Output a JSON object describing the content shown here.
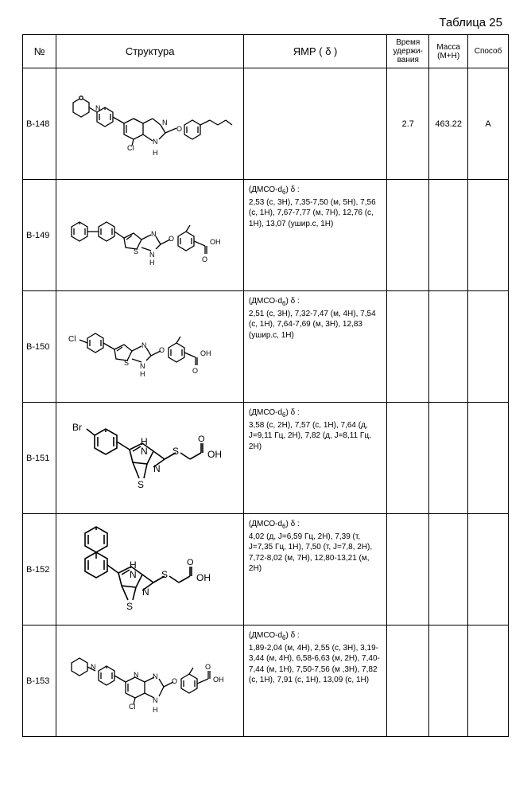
{
  "title": "Таблица 25",
  "headers": {
    "num": "№",
    "struct": "Структура",
    "nmr": "ЯМР ( δ )",
    "rt": "Время удержи-вания",
    "mass": "Масса (M+H)",
    "meth": "Способ"
  },
  "rows": [
    {
      "id": "B-148",
      "nmr": "",
      "rt": "2.7",
      "mass": "463.22",
      "meth": "A"
    },
    {
      "id": "B-149",
      "nmr": "(ДМСО-d₆) δ :\n2,53 (с, 3H), 7,35-7,50 (м, 5H), 7,56 (с, 1H), 7,67-7,77 (м, 7H), 12,76 (с, 1H), 13,07 (ушир.с, 1H)",
      "rt": "",
      "mass": "",
      "meth": ""
    },
    {
      "id": "B-150",
      "nmr": "(ДМСО-d₆) δ :\n2,51 (с, 3H), 7,32-7,47 (м, 4H), 7,54 (с, 1H), 7,64-7,69 (м, 3H), 12,83 (ушир.с, 1H)",
      "rt": "",
      "mass": "",
      "meth": ""
    },
    {
      "id": "B-151",
      "nmr": "(ДМСО-d₆) δ :\n3,58 (с, 2H), 7,57 (с, 1H), 7,64 (д, J=9,11 Гц, 2H), 7,82 (д, J=8,11 Гц, 2H)",
      "rt": "",
      "mass": "",
      "meth": ""
    },
    {
      "id": "B-152",
      "nmr": "(ДМСО-d₆) δ :\n4,02 (д, J=6,59 Гц, 2H), 7,39 (т, J=7,35 Гц, 1H), 7,50 (т, J=7,8, 2H), 7,72-8,02 (м, 7H), 12,80-13,21 (м, 2H)",
      "rt": "",
      "mass": "",
      "meth": ""
    },
    {
      "id": "B-153",
      "nmr": "(ДМСО-d₆) δ :\n1,89-2,04 (м, 4H), 2,55 (с, 3H), 3,19-3,44 (м, 4H), 6,58-6,63 (м, 2H), 7,40-7,44 (м, 1H), 7,50-7,56 (м ,3H), 7,82 (с, 1H), 7,91 (с, 1H), 13,09 (с, 1H)",
      "rt": "",
      "mass": "",
      "meth": ""
    }
  ],
  "mol_svgs": {
    "B-148": "<svg width='210' height='110' viewBox='0 0 210 110'><g stroke='#000' stroke-width='1.3' fill='none'><polygon points='8,30 18,24 28,30 28,42 18,48 8,42'/><circle cx='18' cy='24' r='2.2' fill='#fff'/><line x1='28' y1='36' x2='38' y2='42'/><polygon points='38,42 48,36 58,42 58,54 48,60 38,54'/><line x1='41' y1='44' x2='41' y2='52'/><line x1='55' y1='44' x2='55' y2='52'/><line x1='48' y1='36' x2='48' y2='39'/><line x1='58' y1='48' x2='72' y2='56'/><polygon points='72,56 84,50 96,56 96,70 84,76 72,70'/><line x1='75' y1='58' x2='75' y2='68'/><line x1='84' y1='50' x2='90' y2='53'/><line x1='96' y1='56' x2='108' y2='50'/><line x1='108' y1='50' x2='118' y2='58'/><line x1='96' y1='70' x2='108' y2='78'/><text x='108' y='82' font-size='9' fill='#000' stroke='none'>N</text><text x='108' y='96' font-size='9' fill='#000' stroke='none'>H</text><line x1='116' y1='76' x2='124' y2='68'/><line x1='118' y1='58' x2='124' y2='68'/><text x='120' y='58' font-size='9' fill='#000' stroke='none'>N</text><line x1='124' y1='68' x2='138' y2='62'/><text x='138' y='66' font-size='9' fill='#000' stroke='none'>O</text><polygon points='148,58 158,52 168,58 168,70 158,76 148,70'/><line x1='151' y1='60' x2='151' y2='68'/><line x1='165' y1='60' x2='165' y2='68'/><line x1='168' y1='58' x2='180' y2='52'/><line x1='180' y1='52' x2='190' y2='58'/><line x1='190' y1='58' x2='200' y2='52'/><line x1='200' y1='52' x2='208' y2='58'/><text x='76' y='90' font-size='9' fill='#000' stroke='none'>Cl</text><line x1='84' y1='76' x2='82' y2='84'/><text x='36' y='40' font-size='9' fill='#000' stroke='none'>N</text></g></svg>",
    "B-149": "<svg width='210' height='90' viewBox='0 0 210 90'><g stroke='#000' stroke-width='1.3' fill='none'><polygon points='6,36 16,30 26,36 26,48 16,54 6,48'/><line x1='9' y1='38' x2='9' y2='46'/><line x1='23' y1='38' x2='23' y2='46'/><line x1='16' y1='30' x2='16' y2='33'/><line x1='26' y1='42' x2='40' y2='42'/><polygon points='40,36 50,30 60,36 60,48 50,54 40,48'/><line x1='43' y1='38' x2='43' y2='46'/><line x1='57' y1='38' x2='57' y2='46'/><line x1='60' y1='42' x2='72' y2='50'/><polygon points='72,50 84,44 94,52 88,64 74,62'/><line x1='75' y1='52' x2='82' y2='47'/><text x='84' y='70' font-size='9' fill='#000' stroke='none'>S</text><line x1='94' y1='52' x2='106' y2='46'/><text x='106' y='48' font-size='9' fill='#000' stroke='none'>N</text><line x1='94' y1='62' x2='106' y2='66'/><text x='104' y='74' font-size='9' fill='#000' stroke='none'>N</text><text x='104' y='84' font-size='9' fill='#000' stroke='none'>H</text><line x1='112' y1='48' x2='118' y2='58'/><line x1='112' y1='64' x2='118' y2='58'/><line x1='118' y1='58' x2='130' y2='52'/><text x='128' y='54' font-size='9' fill='#000' stroke='none'>O</text><polygon points='140,48 150,42 160,48 160,60 150,66 140,60'/><line x1='143' y1='50' x2='143' y2='58'/><line x1='157' y1='50' x2='157' y2='58'/><line x1='150' y1='42' x2='155' y2='34'/><line x1='160' y1='54' x2='174' y2='60'/><line x1='174' y1='60' x2='174' y2='70'/><line x1='176' y1='60' x2='176' y2='70'/><text x='170' y='80' font-size='9' fill='#000' stroke='none'>O</text><text x='180' y='58' font-size='9' fill='#000' stroke='none'>OH</text></g></svg>",
    "B-150": "<svg width='210' height='90' viewBox='0 0 210 90'><g stroke='#000' stroke-width='1.3' fill='none'><text x='2' y='40' font-size='10' fill='#000' stroke='none'>Cl</text><line x1='16' y1='38' x2='26' y2='42'/><polygon points='26,36 36,30 46,36 46,48 36,54 26,48'/><line x1='29' y1='38' x2='29' y2='46'/><line x1='43' y1='38' x2='43' y2='46'/><line x1='46' y1='42' x2='60' y2='50'/><polygon points='60,50 72,44 82,52 76,64 62,62'/><line x1='63' y1='52' x2='70' y2='47'/><text x='72' y='70' font-size='9' fill='#000' stroke='none'>S</text><line x1='82' y1='52' x2='94' y2='46'/><text x='94' y='48' font-size='9' fill='#000' stroke='none'>N</text><line x1='82' y1='62' x2='94' y2='66'/><text x='92' y='74' font-size='9' fill='#000' stroke='none'>N</text><text x='92' y='84' font-size='9' fill='#000' stroke='none'>H</text><line x1='100' y1='48' x2='106' y2='58'/><line x1='100' y1='64' x2='106' y2='58'/><line x1='106' y1='58' x2='118' y2='52'/><text x='116' y='54' font-size='9' fill='#000' stroke='none'>O</text><polygon points='128,48 138,42 148,48 148,60 138,66 128,60'/><line x1='131' y1='50' x2='131' y2='58'/><line x1='145' y1='50' x2='145' y2='58'/><line x1='138' y1='42' x2='143' y2='34'/><line x1='148' y1='54' x2='162' y2='60'/><line x1='162' y1='60' x2='162' y2='70'/><line x1='164' y1='60' x2='164' y2='70'/><text x='158' y='80' font-size='9' fill='#000' stroke='none'>O</text><text x='168' y='58' font-size='9' fill='#000' stroke='none'>OH</text></g></svg>",
    "B-151": "<svg width='200' height='110' viewBox='0 0 200 110'><g stroke='#000' stroke-width='1.6' fill='none'><text x='2' y='22' font-size='12' fill='#000' stroke='none'>Br</text><line x1='20' y1='20' x2='30' y2='28'/><polygon points='30,28 44,20 58,28 58,44 44,52 30,44'/><line x1='34' y1='30' x2='34' y2='42'/><line x1='54' y1='30' x2='54' y2='42'/><line x1='44' y1='20' x2='44' y2='24'/><line x1='58' y1='36' x2='74' y2='46'/><polygon points='74,46 90,38 104,48 96,64 78,62'/><line x1='78' y1='48' x2='88' y2='42'/><text x='84' y='94' font-size='12' fill='#000' stroke='none'>S</text><line x1='78' y1='62' x2='86' y2='82'/><line x1='96' y1='64' x2='92' y2='82'/><text x='88' y='40' font-size='12' fill='#000' stroke='none'>H</text><text x='88' y='52' font-size='12' fill='#000' stroke='none'>N</text><line x1='104' y1='48' x2='118' y2='58'/><line x1='104' y1='68' x2='118' y2='58'/><text x='104' y='74' font-size='12' fill='#000' stroke='none'>N</text><line x1='118' y1='58' x2='132' y2='50'/><text x='128' y='52' font-size='12' fill='#000' stroke='none'>S</text><line x1='138' y1='50' x2='150' y2='58'/><line x1='150' y1='58' x2='164' y2='50'/><line x1='164' y1='50' x2='164' y2='38'/><line x1='166' y1='50' x2='166' y2='38'/><text x='160' y='36' font-size='11' fill='#000' stroke='none'>O</text><text x='172' y='56' font-size='12' fill='#000' stroke='none'>OH</text></g></svg>",
    "B-152": "<svg width='200' height='120' viewBox='0 0 200 120'><g stroke='#000' stroke-width='1.6' fill='none'><polygon points='18,16 32,8 46,16 46,32 32,40 18,32'/><line x1='22' y1='18' x2='22' y2='30'/><line x1='42' y1='18' x2='42' y2='30'/><line x1='32' y1='8' x2='32' y2='12'/><line x1='32' y1='40' x2='32' y2='48'/><polygon points='18,48 32,40 46,48 46,64 32,72 18,64'/><line x1='22' y1='50' x2='22' y2='62'/><line x1='42' y1='50' x2='42' y2='62'/><line x1='46' y1='56' x2='60' y2='66'/><polygon points='60,66 76,58 90,68 82,84 64,82'/><line x1='64' y1='68' x2='74' y2='62'/><text x='70' y='112' font-size='12' fill='#000' stroke='none'>S</text><line x1='64' y1='82' x2='72' y2='100'/><line x1='82' y1='84' x2='78' y2='100'/><text x='74' y='60' font-size='12' fill='#000' stroke='none'>H</text><text x='74' y='72' font-size='12' fill='#000' stroke='none'>N</text><line x1='90' y1='68' x2='104' y2='78'/><line x1='90' y1='88' x2='104' y2='78'/><text x='90' y='94' font-size='12' fill='#000' stroke='none'>N</text><line x1='104' y1='78' x2='118' y2='70'/><text x='114' y='72' font-size='12' fill='#000' stroke='none'>S</text><line x1='124' y1='70' x2='136' y2='78'/><line x1='136' y1='78' x2='150' y2='70'/><line x1='150' y1='70' x2='150' y2='58'/><line x1='152' y1='70' x2='152' y2='58'/><text x='146' y='56' font-size='11' fill='#000' stroke='none'>O</text><text x='158' y='76' font-size='12' fill='#000' stroke='none'>OH</text></g></svg>",
    "B-153": "<svg width='210' height='110' viewBox='0 0 210 110'><g stroke='#000' stroke-width='1.3' fill='none'><polygon points='6,34 16,28 26,34 26,44 16,50 6,44'/><line x1='26' y1='39' x2='36' y2='44'/><text x='30' y='42' font-size='9' fill='#000' stroke='none'>N</text><polygon points='40,44 50,38 60,44 60,56 50,62 40,56'/><line x1='43' y1='46' x2='43' y2='54'/><line x1='57' y1='46' x2='57' y2='54'/><line x1='50' y1='38' x2='50' y2='41'/><line x1='60' y1='50' x2='74' y2='58'/><polygon points='74,58 86,52 98,58 98,72 86,78 74,72'/><line x1='77' y1='60' x2='77' y2='70'/><text x='84' y='52' font-size='9' fill='#000' stroke='none'>N</text><line x1='98' y1='58' x2='110' y2='52'/><text x='108' y='54' font-size='9' fill='#000' stroke='none'>N</text><line x1='98' y1='72' x2='110' y2='78'/><text x='108' y='84' font-size='9' fill='#000' stroke='none'>N</text><text x='108' y='96' font-size='9' fill='#000' stroke='none'>H</text><line x1='116' y1='54' x2='122' y2='64'/><line x1='116' y1='76' x2='122' y2='64'/><line x1='122' y1='64' x2='134' y2='58'/><text x='132' y='60' font-size='9' fill='#000' stroke='none'>O</text><polygon points='144,54 154,48 164,54 164,66 154,72 144,66'/><line x1='147' y1='56' x2='147' y2='64'/><line x1='161' y1='56' x2='161' y2='64'/><line x1='154' y1='48' x2='159' y2='40'/><line x1='164' y1='60' x2='178' y2='54'/><line x1='178' y1='54' x2='178' y2='44'/><line x1='180' y1='54' x2='180' y2='44'/><text x='174' y='42' font-size='9' fill='#000' stroke='none'>O</text><text x='184' y='58' font-size='9' fill='#000' stroke='none'>OH</text><text x='78' y='92' font-size='9' fill='#000' stroke='none'>Cl</text><line x1='86' y1='78' x2='84' y2='86'/></g></svg>"
  }
}
